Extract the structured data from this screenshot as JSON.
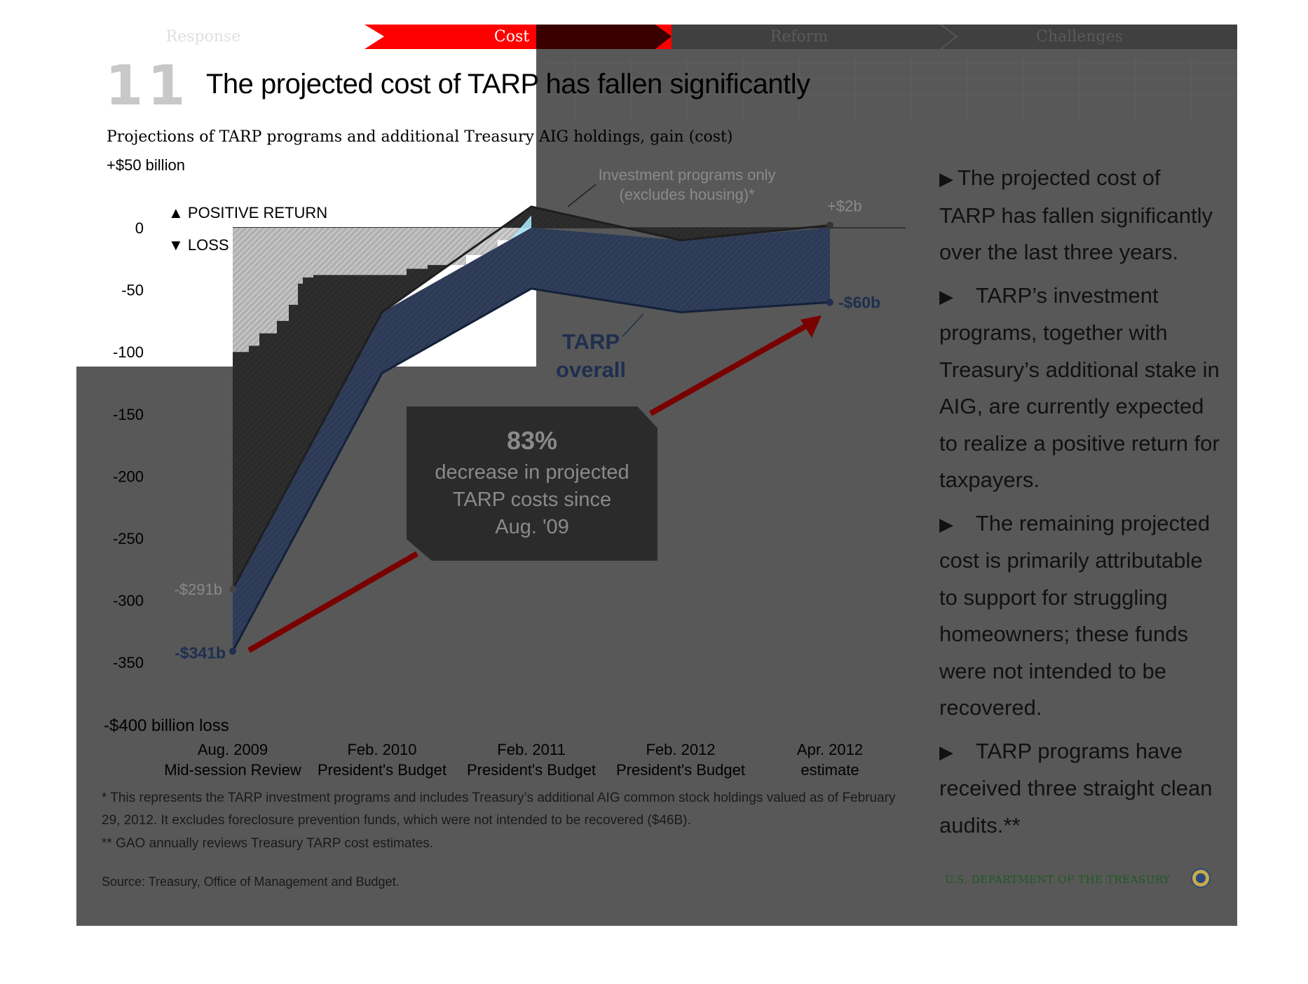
{
  "nav": {
    "tabs": [
      {
        "label": "Response"
      },
      {
        "label": "Cost"
      },
      {
        "label": "Reform"
      },
      {
        "label": "Challenges"
      }
    ],
    "active_color": "#ff0000"
  },
  "slide": {
    "number": "11",
    "title": "The projected cost of TARP has fallen significantly",
    "subtitle": "Projections of TARP programs and additional Treasury AIG holdings, gain (cost)"
  },
  "chart_data": {
    "type": "area",
    "x": [
      "Aug. 2009 Mid-session Review",
      "Feb. 2010 President's Budget",
      "Feb. 2011 President's Budget",
      "Feb. 2012 President's Budget",
      "Apr. 2012 estimate"
    ],
    "x_labels": [
      {
        "line1": "Aug. 2009",
        "line2": "Mid-session Review"
      },
      {
        "line1": "Feb. 2010",
        "line2": "President's Budget"
      },
      {
        "line1": "Feb. 2011",
        "line2": "President's Budget"
      },
      {
        "line1": "Feb. 2012",
        "line2": "President's Budget"
      },
      {
        "line1": "Apr. 2012",
        "line2": "estimate"
      }
    ],
    "series": [
      {
        "name": "Investment programs only (excludes housing)*",
        "values": [
          -291,
          -68,
          17,
          -10,
          2
        ],
        "color": "#333333"
      },
      {
        "name": "TARP overall",
        "values": [
          -341,
          -117,
          -49,
          -68,
          -60
        ],
        "color": "#1e2f4f"
      }
    ],
    "ylim": [
      -400,
      50
    ],
    "yticks": [
      0,
      -50,
      -100,
      -150,
      -200,
      -250,
      -300,
      -350
    ],
    "ytick_labels": [
      "0",
      "-50",
      "-100",
      "-150",
      "-200",
      "-250",
      "-300",
      "-350"
    ],
    "ylabel_top": "+$50 billion",
    "ylabel_bottom": "-$400 billion loss",
    "legend": {
      "positive": "POSITIVE RETURN",
      "loss": "LOSS"
    },
    "annotations": {
      "investment_label_line1": "Investment programs only",
      "investment_label_line2": "(excludes housing)*",
      "overall_label_line1": "TARP",
      "overall_label_line2": "overall",
      "start_investment": "-$291b",
      "start_overall": "-$341b",
      "end_investment": "+$2b",
      "end_overall": "-$60b"
    },
    "callout": {
      "percent": "83%",
      "line1": "decrease in projected",
      "line2": "TARP costs since",
      "line3": "Aug. '09"
    }
  },
  "notes": {
    "note1_line1": "* This represents the TARP investment programs and includes Treasury’s additional AIG common stock holdings valued as of February",
    "note1_line2": "29, 2012. It excludes foreclosure prevention funds, which were not intended to be recovered ($46B).",
    "note2": "** GAO annually reviews Treasury TARP cost estimates.",
    "source": "Source: Treasury, Office of Management and Budget."
  },
  "side_bullets": [
    "The projected cost of TARP has fallen significantly over the last three years.",
    "TARP’s investment programs, together with Treasury’s additional stake in AIG,  are currently expected to realize a positive return for taxpayers.",
    "The remaining projected cost is primarily attributable to support for struggling homeowners; these funds were not intended to be recovered.",
    "TARP programs have received three straight clean audits.**"
  ],
  "footer": {
    "department": "U.S. DEPARTMENT OF THE TREASURY"
  },
  "icons": {
    "bullet": "triangle-right-icon",
    "seal": "treasury-seal-icon"
  }
}
